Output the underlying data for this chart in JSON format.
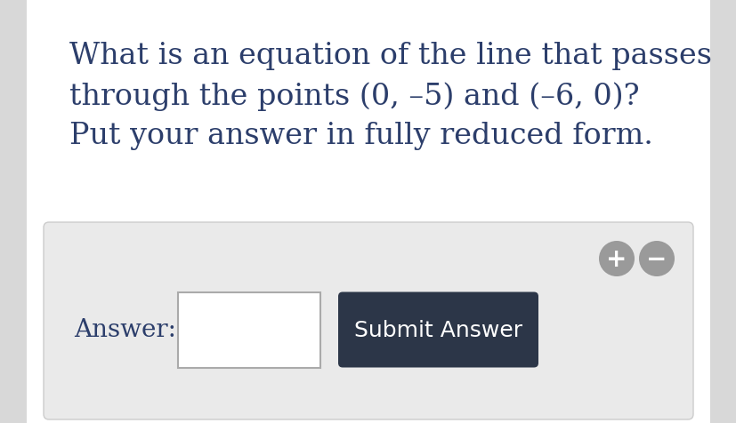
{
  "page_bg": "#f0f0f0",
  "content_bg": "#ffffff",
  "question_line1": "What is an equation of the line that passes",
  "question_line2": "through the points (0, –5) and (–6, 0)?",
  "question_line3": "Put your answer in fully reduced form.",
  "answer_label": "Answer:",
  "submit_label": "Submit Answer",
  "text_color": "#2c3e6b",
  "submit_bg": "#2c3648",
  "submit_text_color": "#ffffff",
  "input_box_color": "#ffffff",
  "input_box_border": "#aaaaaa",
  "panel_bg": "#eaeaea",
  "panel_border": "#cccccc",
  "plus_minus_bg": "#9a9a9a",
  "plus_minus_symbol_color": "#ffffff",
  "font_size_question": 24,
  "font_size_answer": 20,
  "font_size_submit": 18,
  "left_shadow": "#d8d8d8",
  "right_shadow": "#d8d8d8"
}
